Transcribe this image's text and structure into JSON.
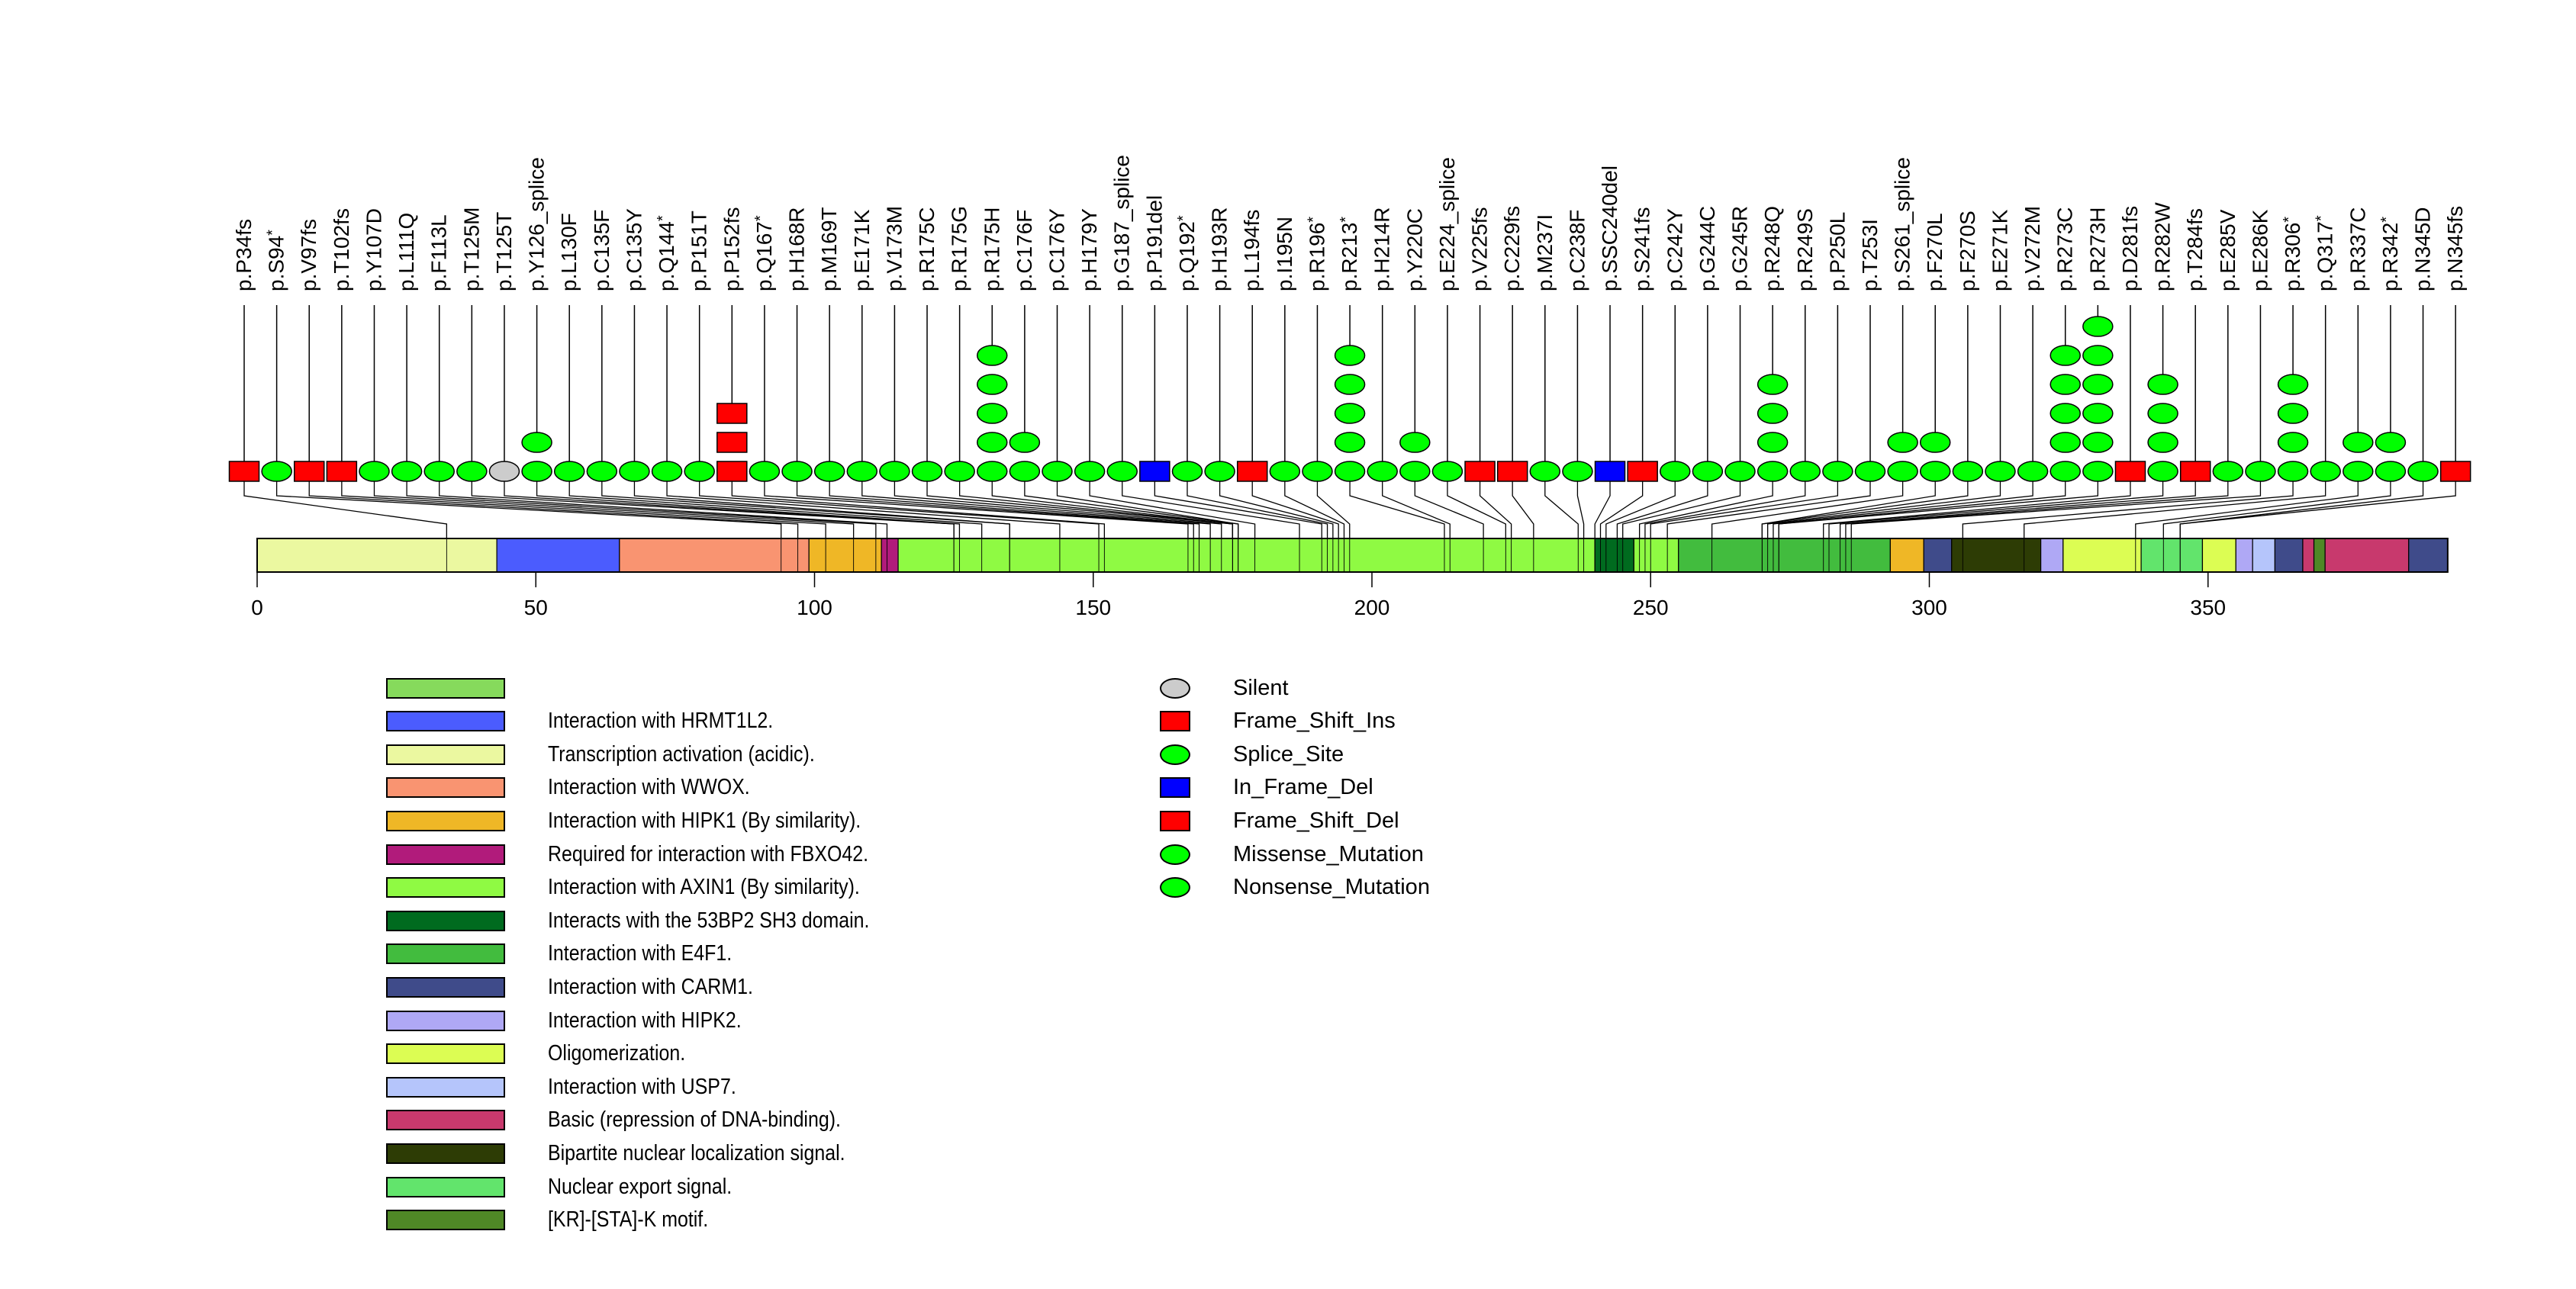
{
  "chart_data": {
    "type": "lollipop",
    "title": "",
    "xlabel": "",
    "ylabel": "",
    "protein_length": 393,
    "xlim": [
      0,
      393
    ],
    "x_ticks": [
      0,
      50,
      100,
      150,
      200,
      250,
      300,
      350
    ],
    "mutation_types": {
      "Silent": {
        "color": "#cccccc",
        "shape": "ellipse"
      },
      "Frame_Shift_Ins": {
        "color": "#ff0000",
        "shape": "rect"
      },
      "Splice_Site": {
        "color": "#00ff00",
        "shape": "ellipse"
      },
      "In_Frame_Del": {
        "color": "#0000ff",
        "shape": "rect"
      },
      "Frame_Shift_Del": {
        "color": "#ff0000",
        "shape": "rect"
      },
      "Missense_Mutation": {
        "color": "#00ff00",
        "shape": "ellipse"
      },
      "Nonsense_Mutation": {
        "color": "#00ff00",
        "shape": "ellipse"
      }
    },
    "mutations": [
      {
        "label": "p.P34fs",
        "pos": 34,
        "type": "Frame_Shift_Del",
        "count": 1
      },
      {
        "label": "p.S94*",
        "pos": 94,
        "type": "Nonsense_Mutation",
        "count": 1
      },
      {
        "label": "p.V97fs",
        "pos": 97,
        "type": "Frame_Shift_Del",
        "count": 1
      },
      {
        "label": "p.T102fs",
        "pos": 102,
        "type": "Frame_Shift_Del",
        "count": 1
      },
      {
        "label": "p.Y107D",
        "pos": 107,
        "type": "Missense_Mutation",
        "count": 1
      },
      {
        "label": "p.L111Q",
        "pos": 111,
        "type": "Missense_Mutation",
        "count": 1
      },
      {
        "label": "p.F113L",
        "pos": 113,
        "type": "Missense_Mutation",
        "count": 1
      },
      {
        "label": "p.T125M",
        "pos": 125,
        "type": "Missense_Mutation",
        "count": 1
      },
      {
        "label": "p.T125T",
        "pos": 125,
        "type": "Silent",
        "count": 1
      },
      {
        "label": "p.Y126_splice",
        "pos": 126,
        "type": "Splice_Site",
        "count": 2
      },
      {
        "label": "p.L130F",
        "pos": 130,
        "type": "Missense_Mutation",
        "count": 1
      },
      {
        "label": "p.C135F",
        "pos": 135,
        "type": "Missense_Mutation",
        "count": 1
      },
      {
        "label": "p.C135Y",
        "pos": 135,
        "type": "Missense_Mutation",
        "count": 1
      },
      {
        "label": "p.Q144*",
        "pos": 144,
        "type": "Nonsense_Mutation",
        "count": 1
      },
      {
        "label": "p.P151T",
        "pos": 151,
        "type": "Missense_Mutation",
        "count": 1
      },
      {
        "label": "p.P152fs",
        "pos": 152,
        "type": "Frame_Shift_Del",
        "count": 3
      },
      {
        "label": "p.Q167*",
        "pos": 167,
        "type": "Nonsense_Mutation",
        "count": 1
      },
      {
        "label": "p.H168R",
        "pos": 168,
        "type": "Missense_Mutation",
        "count": 1
      },
      {
        "label": "p.M169T",
        "pos": 169,
        "type": "Missense_Mutation",
        "count": 1
      },
      {
        "label": "p.E171K",
        "pos": 171,
        "type": "Missense_Mutation",
        "count": 1
      },
      {
        "label": "p.V173M",
        "pos": 173,
        "type": "Missense_Mutation",
        "count": 1
      },
      {
        "label": "p.R175C",
        "pos": 175,
        "type": "Missense_Mutation",
        "count": 1
      },
      {
        "label": "p.R175G",
        "pos": 175,
        "type": "Missense_Mutation",
        "count": 1
      },
      {
        "label": "p.R175H",
        "pos": 175,
        "type": "Missense_Mutation",
        "count": 5
      },
      {
        "label": "p.C176F",
        "pos": 176,
        "type": "Missense_Mutation",
        "count": 2
      },
      {
        "label": "p.C176Y",
        "pos": 176,
        "type": "Missense_Mutation",
        "count": 1
      },
      {
        "label": "p.H179Y",
        "pos": 179,
        "type": "Missense_Mutation",
        "count": 1
      },
      {
        "label": "p.G187_splice",
        "pos": 187,
        "type": "Splice_Site",
        "count": 1
      },
      {
        "label": "p.P191del",
        "pos": 191,
        "type": "In_Frame_Del",
        "count": 1
      },
      {
        "label": "p.Q192*",
        "pos": 192,
        "type": "Nonsense_Mutation",
        "count": 1
      },
      {
        "label": "p.H193R",
        "pos": 193,
        "type": "Missense_Mutation",
        "count": 1
      },
      {
        "label": "p.L194fs",
        "pos": 194,
        "type": "Frame_Shift_Del",
        "count": 1
      },
      {
        "label": "p.I195N",
        "pos": 195,
        "type": "Missense_Mutation",
        "count": 1
      },
      {
        "label": "p.R196*",
        "pos": 196,
        "type": "Nonsense_Mutation",
        "count": 1
      },
      {
        "label": "p.R213*",
        "pos": 213,
        "type": "Nonsense_Mutation",
        "count": 5
      },
      {
        "label": "p.H214R",
        "pos": 214,
        "type": "Missense_Mutation",
        "count": 1
      },
      {
        "label": "p.Y220C",
        "pos": 220,
        "type": "Missense_Mutation",
        "count": 2
      },
      {
        "label": "p.E224_splice",
        "pos": 224,
        "type": "Splice_Site",
        "count": 1
      },
      {
        "label": "p.V225fs",
        "pos": 225,
        "type": "Frame_Shift_Del",
        "count": 1
      },
      {
        "label": "p.C229fs",
        "pos": 229,
        "type": "Frame_Shift_Del",
        "count": 1
      },
      {
        "label": "p.M237I",
        "pos": 237,
        "type": "Missense_Mutation",
        "count": 1
      },
      {
        "label": "p.C238F",
        "pos": 238,
        "type": "Missense_Mutation",
        "count": 1
      },
      {
        "label": "p.SSC240del",
        "pos": 240,
        "type": "In_Frame_Del",
        "count": 1
      },
      {
        "label": "p.S241fs",
        "pos": 241,
        "type": "Frame_Shift_Del",
        "count": 1
      },
      {
        "label": "p.C242Y",
        "pos": 242,
        "type": "Missense_Mutation",
        "count": 1
      },
      {
        "label": "p.G244C",
        "pos": 244,
        "type": "Missense_Mutation",
        "count": 1
      },
      {
        "label": "p.G245R",
        "pos": 245,
        "type": "Missense_Mutation",
        "count": 1
      },
      {
        "label": "p.R248Q",
        "pos": 248,
        "type": "Missense_Mutation",
        "count": 4
      },
      {
        "label": "p.R249S",
        "pos": 249,
        "type": "Missense_Mutation",
        "count": 1
      },
      {
        "label": "p.P250L",
        "pos": 250,
        "type": "Missense_Mutation",
        "count": 1
      },
      {
        "label": "p.T253I",
        "pos": 253,
        "type": "Missense_Mutation",
        "count": 1
      },
      {
        "label": "p.S261_splice",
        "pos": 261,
        "type": "Splice_Site",
        "count": 2
      },
      {
        "label": "p.F270L",
        "pos": 270,
        "type": "Missense_Mutation",
        "count": 2
      },
      {
        "label": "p.F270S",
        "pos": 270,
        "type": "Missense_Mutation",
        "count": 1
      },
      {
        "label": "p.E271K",
        "pos": 271,
        "type": "Missense_Mutation",
        "count": 1
      },
      {
        "label": "p.V272M",
        "pos": 272,
        "type": "Missense_Mutation",
        "count": 1
      },
      {
        "label": "p.R273C",
        "pos": 273,
        "type": "Missense_Mutation",
        "count": 5
      },
      {
        "label": "p.R273H",
        "pos": 273,
        "type": "Missense_Mutation",
        "count": 6
      },
      {
        "label": "p.D281fs",
        "pos": 281,
        "type": "Frame_Shift_Del",
        "count": 1
      },
      {
        "label": "p.R282W",
        "pos": 282,
        "type": "Missense_Mutation",
        "count": 4
      },
      {
        "label": "p.T284fs",
        "pos": 284,
        "type": "Frame_Shift_Del",
        "count": 1
      },
      {
        "label": "p.E285V",
        "pos": 285,
        "type": "Missense_Mutation",
        "count": 1
      },
      {
        "label": "p.E286K",
        "pos": 286,
        "type": "Missense_Mutation",
        "count": 1
      },
      {
        "label": "p.R306*",
        "pos": 306,
        "type": "Nonsense_Mutation",
        "count": 4
      },
      {
        "label": "p.Q317*",
        "pos": 317,
        "type": "Nonsense_Mutation",
        "count": 1
      },
      {
        "label": "p.R337C",
        "pos": 337,
        "type": "Missense_Mutation",
        "count": 2
      },
      {
        "label": "p.R342*",
        "pos": 342,
        "type": "Nonsense_Mutation",
        "count": 2
      },
      {
        "label": "p.N345D",
        "pos": 345,
        "type": "Missense_Mutation",
        "count": 1
      },
      {
        "label": "p.N345fs",
        "pos": 345,
        "type": "Frame_Shift_Del",
        "count": 1
      }
    ],
    "domains": [
      {
        "start": 0,
        "end": 43,
        "name": "Transcription activation (acidic).",
        "color": "#ebf8a0"
      },
      {
        "start": 43,
        "end": 65,
        "name": "Interaction with HRMT1L2.",
        "color": "#4b5cfe"
      },
      {
        "start": 65,
        "end": 99,
        "name": "Interaction with WWOX.",
        "color": "#f99471"
      },
      {
        "start": 99,
        "end": 112,
        "name": "Interaction with HIPK1 (By similarity).",
        "color": "#efb726"
      },
      {
        "start": 112,
        "end": 115,
        "name": "Required for interaction with FBXO42.",
        "color": "#b11b7b"
      },
      {
        "start": 115,
        "end": 240,
        "name": "Interaction with AXIN1 (By similarity).",
        "color": "#8ffa43"
      },
      {
        "start": 240,
        "end": 247,
        "name": "Interacts with the 53BP2 SH3 domain.",
        "color": "#006b1f"
      },
      {
        "start": 247,
        "end": 255,
        "name": "Interaction with AXIN1 (By similarity).",
        "color": "#8ffa43"
      },
      {
        "start": 255,
        "end": 293,
        "name": "Interaction with E4F1.",
        "color": "#42bc3e"
      },
      {
        "start": 293,
        "end": 299,
        "name": "Interaction with HIPK1 (By similarity).",
        "color": "#efb726"
      },
      {
        "start": 299,
        "end": 304,
        "name": "Interaction with CARM1.",
        "color": "#3f4b8a"
      },
      {
        "start": 304,
        "end": 320,
        "name": "Bipartite nuclear localization signal.",
        "color": "#2d3c05"
      },
      {
        "start": 320,
        "end": 324,
        "name": "Interaction with HIPK2.",
        "color": "#afa8f5"
      },
      {
        "start": 324,
        "end": 338,
        "name": "Oligomerization.",
        "color": "#dcfd53"
      },
      {
        "start": 338,
        "end": 349,
        "name": "Nuclear export signal.",
        "color": "#62e46c"
      },
      {
        "start": 349,
        "end": 355,
        "name": "Oligomerization.",
        "color": "#dcfd53"
      },
      {
        "start": 355,
        "end": 358,
        "name": "Interaction with HIPK2.",
        "color": "#afa8f5"
      },
      {
        "start": 358,
        "end": 362,
        "name": "Interaction with USP7.",
        "color": "#b5c5fb"
      },
      {
        "start": 362,
        "end": 367,
        "name": "Interaction with CARM1.",
        "color": "#3f4b8a"
      },
      {
        "start": 367,
        "end": 369,
        "name": "Basic (repression of DNA-binding).",
        "color": "#c8396d"
      },
      {
        "start": 369,
        "end": 371,
        "name": "[KR]-[STA]-K motif.",
        "color": "#4f8826"
      },
      {
        "start": 371,
        "end": 386,
        "name": "Basic (repression of DNA-binding).",
        "color": "#c8396d"
      },
      {
        "start": 386,
        "end": 393,
        "name": "Interaction with CARM1.",
        "color": "#3f4b8a"
      }
    ],
    "legend_domains": [
      {
        "label": "",
        "color": "#86da5c"
      },
      {
        "label": "Interaction with HRMT1L2.",
        "color": "#4b5cfe"
      },
      {
        "label": "Transcription activation (acidic).",
        "color": "#ebf8a0"
      },
      {
        "label": "Interaction with WWOX.",
        "color": "#f99471"
      },
      {
        "label": "Interaction with HIPK1 (By similarity).",
        "color": "#efb726"
      },
      {
        "label": "Required for interaction with FBXO42.",
        "color": "#b11b7b"
      },
      {
        "label": "Interaction with AXIN1 (By similarity).",
        "color": "#8ffa43"
      },
      {
        "label": "Interacts with the 53BP2 SH3 domain.",
        "color": "#006b1f"
      },
      {
        "label": "Interaction with E4F1.",
        "color": "#42bc3e"
      },
      {
        "label": "Interaction with CARM1.",
        "color": "#3f4b8a"
      },
      {
        "label": "Interaction with HIPK2.",
        "color": "#afa8f5"
      },
      {
        "label": "Oligomerization.",
        "color": "#dcfd53"
      },
      {
        "label": "Interaction with USP7.",
        "color": "#b5c5fb"
      },
      {
        "label": "Basic (repression of DNA-binding).",
        "color": "#c8396d"
      },
      {
        "label": "Bipartite nuclear localization signal.",
        "color": "#2d3c05"
      },
      {
        "label": "Nuclear export signal.",
        "color": "#62e46c"
      },
      {
        "label": "[KR]-[STA]-K motif.",
        "color": "#4f8826"
      }
    ],
    "legend_mutations": [
      {
        "label": "Silent",
        "type": "Silent"
      },
      {
        "label": "Frame_Shift_Ins",
        "type": "Frame_Shift_Ins"
      },
      {
        "label": "Splice_Site",
        "type": "Splice_Site"
      },
      {
        "label": "In_Frame_Del",
        "type": "In_Frame_Del"
      },
      {
        "label": "Frame_Shift_Del",
        "type": "Frame_Shift_Del"
      },
      {
        "label": "Missense_Mutation",
        "type": "Missense_Mutation"
      },
      {
        "label": "Nonsense_Mutation",
        "type": "Nonsense_Mutation"
      }
    ]
  }
}
